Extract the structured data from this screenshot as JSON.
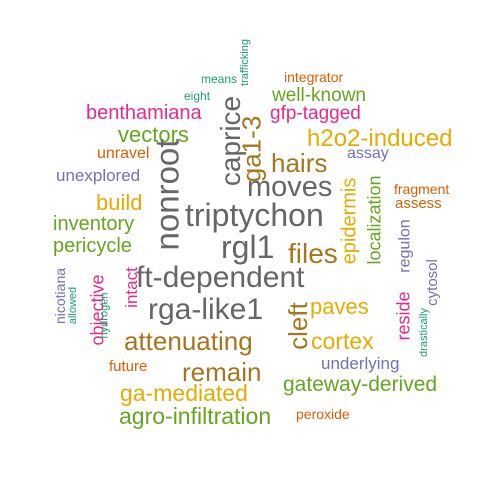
{
  "colors": {
    "teal": "#1b9e77",
    "orange": "#d95f02",
    "purple": "#7570b3",
    "pink": "#e7298a",
    "green": "#66a61e",
    "gold": "#e6ab02",
    "brown": "#a6761d",
    "gray": "#666666"
  },
  "words": [
    {
      "text": "trafficking",
      "color": "teal"
    },
    {
      "text": "means",
      "color": "teal"
    },
    {
      "text": "integrator",
      "color": "orange"
    },
    {
      "text": "eight",
      "color": "teal"
    },
    {
      "text": "well-known",
      "color": "green"
    },
    {
      "text": "benthamiana",
      "color": "pink"
    },
    {
      "text": "gfp-tagged",
      "color": "pink"
    },
    {
      "text": "caprice",
      "color": "gray"
    },
    {
      "text": "vectors",
      "color": "green"
    },
    {
      "text": "h2o2-induced",
      "color": "gold"
    },
    {
      "text": "unravel",
      "color": "orange"
    },
    {
      "text": "ga1-3",
      "color": "brown"
    },
    {
      "text": "assay",
      "color": "purple"
    },
    {
      "text": "hairs",
      "color": "brown"
    },
    {
      "text": "unexplored",
      "color": "purple"
    },
    {
      "text": "nonroot",
      "color": "gray"
    },
    {
      "text": "moves",
      "color": "gray"
    },
    {
      "text": "fragment",
      "color": "orange"
    },
    {
      "text": "build",
      "color": "gold"
    },
    {
      "text": "epidermis",
      "color": "gold"
    },
    {
      "text": "assess",
      "color": "orange"
    },
    {
      "text": "triptychon",
      "color": "gray"
    },
    {
      "text": "inventory",
      "color": "green"
    },
    {
      "text": "localization",
      "color": "green"
    },
    {
      "text": "pericycle",
      "color": "green"
    },
    {
      "text": "rgl1",
      "color": "gray"
    },
    {
      "text": "files",
      "color": "brown"
    },
    {
      "text": "regulon",
      "color": "purple"
    },
    {
      "text": "nicotiana",
      "color": "purple"
    },
    {
      "text": "objective",
      "color": "pink"
    },
    {
      "text": "intact",
      "color": "pink"
    },
    {
      "text": "ft-dependent",
      "color": "gray"
    },
    {
      "text": "cytosol",
      "color": "purple"
    },
    {
      "text": "allowed",
      "color": "teal"
    },
    {
      "text": "hydrogen",
      "color": "teal"
    },
    {
      "text": "cleft",
      "color": "brown"
    },
    {
      "text": "paves",
      "color": "gold"
    },
    {
      "text": "rga-like1",
      "color": "gray"
    },
    {
      "text": "reside",
      "color": "pink"
    },
    {
      "text": "drastically",
      "color": "teal"
    },
    {
      "text": "attenuating",
      "color": "brown"
    },
    {
      "text": "cortex",
      "color": "gold"
    },
    {
      "text": "underlying",
      "color": "purple"
    },
    {
      "text": "future",
      "color": "orange"
    },
    {
      "text": "remain",
      "color": "brown"
    },
    {
      "text": "ga-mediated",
      "color": "gold"
    },
    {
      "text": "gateway-derived",
      "color": "green"
    },
    {
      "text": "agro-infiltration",
      "color": "green"
    },
    {
      "text": "peroxide",
      "color": "orange"
    }
  ]
}
